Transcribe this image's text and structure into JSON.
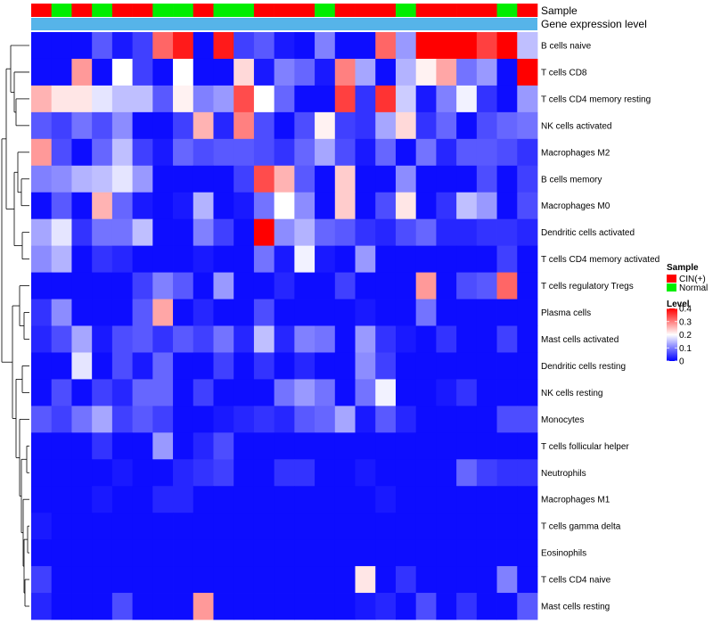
{
  "chart_data": {
    "type": "heatmap",
    "annotation_labels": {
      "sample": "Sample",
      "gene_expression": "Gene expression level"
    },
    "sample_groups": [
      "CIN(+)",
      "Normal",
      "CIN(+)",
      "Normal",
      "CIN(+)",
      "CIN(+)",
      "Normal",
      "Normal",
      "CIN(+)",
      "Normal",
      "Normal",
      "CIN(+)",
      "CIN(+)",
      "CIN(+)",
      "Normal",
      "CIN(+)",
      "CIN(+)",
      "CIN(+)",
      "Normal",
      "CIN(+)",
      "CIN(+)",
      "CIN(+)",
      "CIN(+)",
      "Normal",
      "CIN(+)"
    ],
    "rows": [
      {
        "label": "B cells naive",
        "values": [
          0.01,
          0.01,
          0.01,
          0.07,
          0.02,
          0.05,
          0.32,
          0.38,
          0.01,
          0.38,
          0.05,
          0.07,
          0.02,
          0.01,
          0.1,
          0.01,
          0.01,
          0.32,
          0.12,
          0.4,
          0.4,
          0.4,
          0.35,
          0.4,
          0.15
        ]
      },
      {
        "label": "T cells CD8",
        "values": [
          0.01,
          0.01,
          0.28,
          0.01,
          0.2,
          0.05,
          0.01,
          0.2,
          0.01,
          0.01,
          0.23,
          0.02,
          0.1,
          0.08,
          0.02,
          0.3,
          0.13,
          0.01,
          0.14,
          0.21,
          0.27,
          0.09,
          0.12,
          0.01,
          0.4
        ]
      },
      {
        "label": "T cells CD4 memory resting",
        "values": [
          0.26,
          0.22,
          0.22,
          0.18,
          0.15,
          0.15,
          0.07,
          0.21,
          0.1,
          0.12,
          0.34,
          0.2,
          0.08,
          0.01,
          0.01,
          0.35,
          0.04,
          0.36,
          0.16,
          0.02,
          0.1,
          0.19,
          0.04,
          0.01,
          0.12
        ]
      },
      {
        "label": "NK cells activated",
        "values": [
          0.07,
          0.05,
          0.09,
          0.06,
          0.11,
          0.01,
          0.01,
          0.05,
          0.26,
          0.03,
          0.3,
          0.06,
          0.01,
          0.06,
          0.21,
          0.05,
          0.04,
          0.13,
          0.23,
          0.04,
          0.08,
          0.01,
          0.06,
          0.08,
          0.09
        ]
      },
      {
        "label": "Macrophages M2",
        "values": [
          0.28,
          0.06,
          0.01,
          0.08,
          0.15,
          0.05,
          0.02,
          0.08,
          0.06,
          0.07,
          0.07,
          0.06,
          0.04,
          0.08,
          0.13,
          0.06,
          0.02,
          0.08,
          0.01,
          0.09,
          0.03,
          0.07,
          0.07,
          0.06,
          0.04
        ]
      },
      {
        "label": "B cells memory",
        "values": [
          0.1,
          0.11,
          0.14,
          0.15,
          0.18,
          0.12,
          0.01,
          0.01,
          0.01,
          0.01,
          0.05,
          0.34,
          0.26,
          0.07,
          0.01,
          0.24,
          0.01,
          0.01,
          0.11,
          0.01,
          0.01,
          0.01,
          0.06,
          0.01,
          0.05
        ]
      },
      {
        "label": "Macrophages M0",
        "values": [
          0.01,
          0.07,
          0.01,
          0.26,
          0.08,
          0.02,
          0.01,
          0.02,
          0.14,
          0.01,
          0.02,
          0.09,
          0.2,
          0.11,
          0.01,
          0.24,
          0.01,
          0.06,
          0.22,
          0.01,
          0.04,
          0.15,
          0.12,
          0.01,
          0.06
        ]
      },
      {
        "label": "Dendritic cells activated",
        "values": [
          0.13,
          0.18,
          0.04,
          0.09,
          0.09,
          0.15,
          0.01,
          0.01,
          0.1,
          0.05,
          0.01,
          0.4,
          0.11,
          0.14,
          0.08,
          0.07,
          0.04,
          0.03,
          0.06,
          0.08,
          0.03,
          0.03,
          0.04,
          0.04,
          0.03
        ]
      },
      {
        "label": "T cells CD4 memory activated",
        "values": [
          0.11,
          0.14,
          0.01,
          0.04,
          0.03,
          0.01,
          0.01,
          0.01,
          0.02,
          0.01,
          0.01,
          0.09,
          0.02,
          0.19,
          0.02,
          0.01,
          0.12,
          0.01,
          0.01,
          0.01,
          0.01,
          0.01,
          0.01,
          0.05,
          0.01
        ]
      },
      {
        "label": "T cells regulatory  Tregs",
        "values": [
          0.01,
          0.01,
          0.01,
          0.01,
          0.01,
          0.05,
          0.1,
          0.07,
          0.01,
          0.12,
          0.01,
          0.01,
          0.03,
          0.01,
          0.01,
          0.05,
          0.01,
          0.01,
          0.01,
          0.28,
          0.01,
          0.06,
          0.07,
          0.32,
          0.01
        ]
      },
      {
        "label": "Plasma cells",
        "values": [
          0.04,
          0.11,
          0.01,
          0.01,
          0.01,
          0.07,
          0.27,
          0.01,
          0.03,
          0.01,
          0.01,
          0.06,
          0.01,
          0.01,
          0.01,
          0.01,
          0.02,
          0.01,
          0.01,
          0.09,
          0.01,
          0.01,
          0.01,
          0.01,
          0.01
        ]
      },
      {
        "label": "Mast cells activated",
        "values": [
          0.03,
          0.06,
          0.13,
          0.02,
          0.06,
          0.07,
          0.04,
          0.07,
          0.05,
          0.09,
          0.03,
          0.15,
          0.03,
          0.1,
          0.09,
          0.01,
          0.12,
          0.04,
          0.02,
          0.01,
          0.04,
          0.01,
          0.01,
          0.05,
          0.01
        ]
      },
      {
        "label": "Dendritic cells resting",
        "values": [
          0.01,
          0.01,
          0.18,
          0.01,
          0.06,
          0.02,
          0.08,
          0.01,
          0.01,
          0.05,
          0.01,
          0.04,
          0.01,
          0.03,
          0.01,
          0.01,
          0.11,
          0.05,
          0.01,
          0.01,
          0.01,
          0.01,
          0.01,
          0.01,
          0.01
        ]
      },
      {
        "label": "NK cells resting",
        "values": [
          0.01,
          0.06,
          0.01,
          0.05,
          0.03,
          0.08,
          0.08,
          0.01,
          0.05,
          0.01,
          0.01,
          0.01,
          0.09,
          0.12,
          0.09,
          0.01,
          0.09,
          0.19,
          0.01,
          0.01,
          0.02,
          0.04,
          0.01,
          0.01,
          0.01
        ]
      },
      {
        "label": "Monocytes",
        "values": [
          0.07,
          0.05,
          0.09,
          0.13,
          0.05,
          0.07,
          0.05,
          0.01,
          0.01,
          0.02,
          0.03,
          0.04,
          0.03,
          0.07,
          0.08,
          0.13,
          0.02,
          0.07,
          0.03,
          0.01,
          0.01,
          0.01,
          0.01,
          0.06,
          0.06
        ]
      },
      {
        "label": "T cells follicular helper",
        "values": [
          0.01,
          0.01,
          0.01,
          0.04,
          0.01,
          0.01,
          0.12,
          0.01,
          0.03,
          0.06,
          0.01,
          0.01,
          0.01,
          0.01,
          0.01,
          0.01,
          0.01,
          0.01,
          0.01,
          0.01,
          0.01,
          0.01,
          0.01,
          0.01,
          0.01
        ]
      },
      {
        "label": "Neutrophils",
        "values": [
          0.01,
          0.01,
          0.01,
          0.01,
          0.02,
          0.01,
          0.01,
          0.03,
          0.04,
          0.05,
          0.01,
          0.01,
          0.04,
          0.04,
          0.01,
          0.01,
          0.02,
          0.01,
          0.01,
          0.01,
          0.01,
          0.08,
          0.05,
          0.04,
          0.04
        ]
      },
      {
        "label": "Macrophages M1",
        "values": [
          0.01,
          0.01,
          0.01,
          0.02,
          0.01,
          0.01,
          0.03,
          0.03,
          0.01,
          0.01,
          0.01,
          0.01,
          0.01,
          0.01,
          0.01,
          0.01,
          0.01,
          0.02,
          0.01,
          0.01,
          0.01,
          0.01,
          0.01,
          0.01,
          0.01
        ]
      },
      {
        "label": "T cells gamma delta",
        "values": [
          0.02,
          0.01,
          0.01,
          0.01,
          0.01,
          0.01,
          0.01,
          0.01,
          0.01,
          0.01,
          0.01,
          0.01,
          0.01,
          0.01,
          0.01,
          0.01,
          0.01,
          0.01,
          0.01,
          0.01,
          0.01,
          0.01,
          0.01,
          0.01,
          0.01
        ]
      },
      {
        "label": "Eosinophils",
        "values": [
          0.01,
          0.01,
          0.01,
          0.01,
          0.01,
          0.01,
          0.01,
          0.01,
          0.01,
          0.01,
          0.01,
          0.01,
          0.01,
          0.01,
          0.01,
          0.01,
          0.01,
          0.01,
          0.01,
          0.01,
          0.01,
          0.01,
          0.01,
          0.01,
          0.01
        ]
      },
      {
        "label": "T cells CD4 naive",
        "values": [
          0.05,
          0.01,
          0.01,
          0.01,
          0.01,
          0.01,
          0.01,
          0.01,
          0.01,
          0.01,
          0.01,
          0.01,
          0.01,
          0.01,
          0.01,
          0.01,
          0.22,
          0.01,
          0.04,
          0.01,
          0.01,
          0.01,
          0.01,
          0.1,
          0.01
        ]
      },
      {
        "label": "Mast cells resting",
        "values": [
          0.03,
          0.01,
          0.01,
          0.01,
          0.06,
          0.01,
          0.01,
          0.01,
          0.28,
          0.01,
          0.01,
          0.01,
          0.01,
          0.01,
          0.01,
          0.01,
          0.02,
          0.03,
          0.01,
          0.06,
          0.01,
          0.04,
          0.01,
          0.01,
          0.07
        ]
      }
    ],
    "legend": {
      "sample_title": "Sample",
      "sample_items": [
        {
          "label": "CIN(+)",
          "color": "#ff0000"
        },
        {
          "label": "Normal",
          "color": "#00ee00"
        }
      ],
      "level_title": "Level",
      "level_ticks": [
        "0.4",
        "0.3",
        "0.2",
        "0.1",
        "0"
      ],
      "level_tick_values": [
        0.4,
        0.3,
        0.2,
        0.1,
        0.0
      ]
    },
    "color_scale": {
      "low": "#0000ff",
      "mid": "#ffffff",
      "high": "#ff0000",
      "min": 0,
      "mid_value": 0.2,
      "max": 0.4
    },
    "gene_expression_bar_color": "#56b4e9"
  }
}
